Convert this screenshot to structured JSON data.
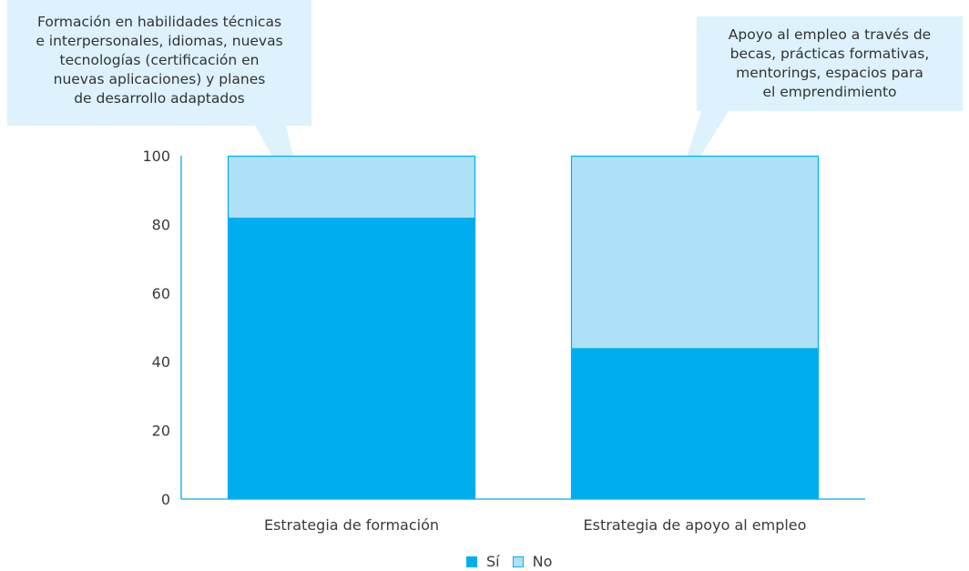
{
  "chart_data": {
    "type": "bar",
    "stacked": true,
    "categories": [
      "Estrategia de formación",
      "Estrategia de apoyo al empleo"
    ],
    "series": [
      {
        "name": "Sí",
        "values": [
          82,
          44
        ],
        "color": "#00aeef"
      },
      {
        "name": "No",
        "values": [
          18,
          56
        ],
        "color": "#aee1f8"
      }
    ],
    "y_ticks": [
      "0",
      "20",
      "40",
      "60",
      "80",
      "100"
    ],
    "ylim": [
      0,
      100
    ],
    "grid": false,
    "legend_position": "bottom-center",
    "annotations": [
      {
        "text": "Formación en habilidades técnicas\ne interpersonales, idiomas, nuevas\ntecnologías (certificación en\nnuevas aplicaciones) y planes\nde desarrollo adaptados",
        "category": "Estrategia de formación"
      },
      {
        "text": "Apoyo al empleo a través de\nbecas, prácticas formativas,\nmentorings, espacios para\nel emprendimiento",
        "category": "Estrategia de apoyo al empleo"
      }
    ]
  },
  "colors": {
    "axis": "#00aeef",
    "callout_fill": "#ddf2fc",
    "bar_outline": "#00aeef"
  }
}
